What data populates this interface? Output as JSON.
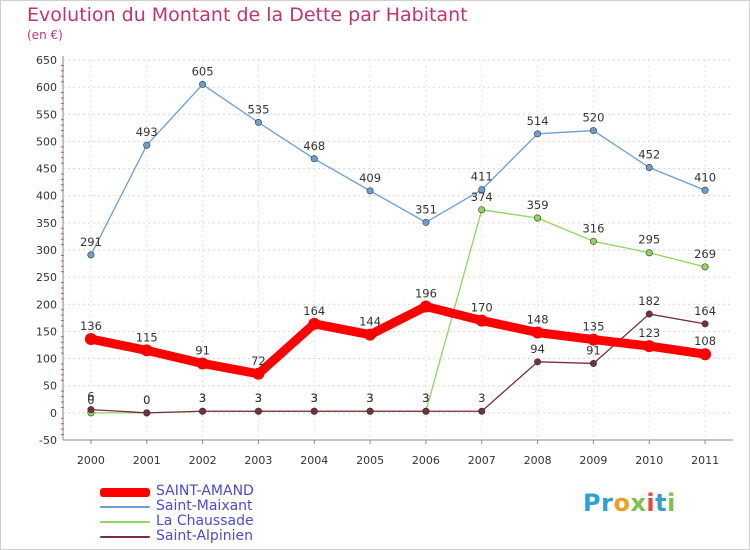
{
  "header": {
    "title": "Evolution du Montant de la Dette par Habitant",
    "unit": "(en €)"
  },
  "brand": {
    "text": "Proxiti",
    "colors": [
      "#2f9fd8",
      "#f0a020",
      "#7cc24a",
      "#e8453c"
    ]
  },
  "chart_data": {
    "type": "line",
    "title": "Evolution du Montant de la Dette par Habitant",
    "ylabel": "(en €)",
    "xlabel": "",
    "x": [
      "2000",
      "2001",
      "2002",
      "2003",
      "2004",
      "2005",
      "2006",
      "2007",
      "2008",
      "2009",
      "2010",
      "2011"
    ],
    "ylim": [
      -50,
      650
    ],
    "yticks": [
      -50,
      0,
      50,
      100,
      150,
      200,
      250,
      300,
      350,
      400,
      450,
      500,
      550,
      600,
      650
    ],
    "grid": true,
    "legend": "bottom-left",
    "series": [
      {
        "name": "SAINT-AMAND",
        "color": "#ff0000",
        "values": [
          136,
          115,
          91,
          72,
          164,
          144,
          196,
          170,
          148,
          135,
          123,
          108
        ]
      },
      {
        "name": "Saint-Maixant",
        "color": "#6a9fd4",
        "values": [
          291,
          493,
          605,
          535,
          468,
          409,
          351,
          411,
          514,
          520,
          452,
          410
        ]
      },
      {
        "name": "La Chaussade",
        "color": "#8ed65c",
        "values": [
          0,
          0,
          3,
          3,
          3,
          3,
          3,
          374,
          359,
          316,
          295,
          269
        ]
      },
      {
        "name": "Saint-Alpinien",
        "color": "#7a2f36",
        "values": [
          6,
          0,
          3,
          3,
          3,
          3,
          3,
          3,
          94,
          91,
          182,
          164
        ]
      }
    ]
  }
}
